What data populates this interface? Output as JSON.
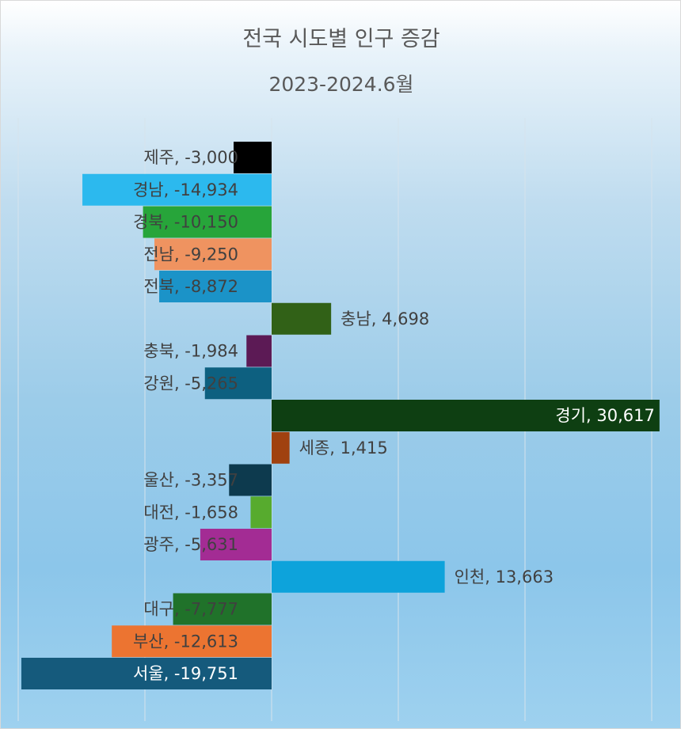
{
  "chart_data": {
    "type": "bar",
    "orientation": "horizontal",
    "title": "전국 시도별 인구 증감",
    "subtitle": "2023-2024.6월",
    "xlim": [
      -20000,
      30000
    ],
    "grid": true,
    "legend": "none",
    "categories": [
      "제주",
      "경남",
      "경북",
      "전남",
      "전북",
      "충남",
      "충북",
      "강원",
      "경기",
      "세종",
      "울산",
      "대전",
      "광주",
      "인천",
      "대구",
      "부산",
      "서울"
    ],
    "values": [
      -3000,
      -14934,
      -10150,
      -9250,
      -8872,
      4698,
      -1984,
      -5265,
      30617,
      1415,
      -3357,
      -1658,
      -5631,
      13663,
      -7777,
      -12613,
      -19751
    ],
    "data_labels": [
      "제주, -3,000",
      "경남, -14,934",
      "경북, -10,150",
      "전남, -9,250",
      "전북, -8,872",
      "충남, 4,698",
      "충북, -1,984",
      "강원, -5,265",
      "경기, 30,617",
      "세종, 1,415",
      "울산, -3,357",
      "대전, -1,658",
      "광주, -5,631",
      "인천, 13,663",
      "대구, -7,777",
      "부산, -12,613",
      "서울, -19,751"
    ],
    "colors": [
      "#000000",
      "#2cb9ee",
      "#27a53a",
      "#ef9360",
      "#1b93c8",
      "#316117",
      "#5c1a55",
      "#0d6080",
      "#0e3f12",
      "#a0410f",
      "#0d3a4e",
      "#57ab2e",
      "#a32c94",
      "#0da3db",
      "#20722a",
      "#ec7431",
      "#155a7c"
    ]
  }
}
